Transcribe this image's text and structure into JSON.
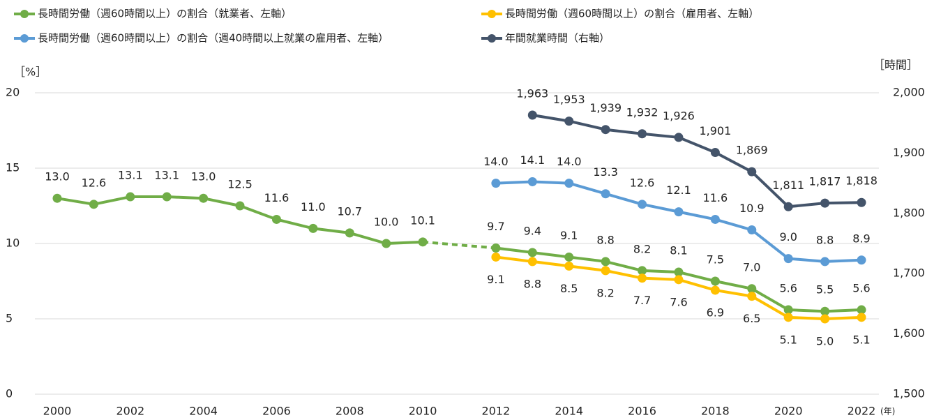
{
  "chart_data": {
    "type": "line",
    "x": [
      2000,
      2001,
      2002,
      2003,
      2004,
      2005,
      2006,
      2007,
      2008,
      2009,
      2010,
      2011,
      2012,
      2013,
      2014,
      2015,
      2016,
      2017,
      2018,
      2019,
      2020,
      2021,
      2022
    ],
    "xlim": [
      2000,
      2022
    ],
    "xticks": [
      2000,
      2002,
      2004,
      2006,
      2008,
      2010,
      2012,
      2014,
      2016,
      2018,
      2020,
      2022
    ],
    "x_unit": "(年)",
    "y_label": "［%］",
    "y2_label": "［時間］",
    "ylim": [
      0,
      20
    ],
    "yticks": [
      0,
      5,
      10,
      15,
      20
    ],
    "y2lim": [
      1500,
      2000
    ],
    "y2ticks": [
      {
        "value": 1500,
        "label": "1,500"
      },
      {
        "value": 1600,
        "label": "1,600"
      },
      {
        "value": 1700,
        "label": "1,700"
      },
      {
        "value": 1800,
        "label": "1,800"
      },
      {
        "value": 1900,
        "label": "1,900"
      },
      {
        "value": 2000,
        "label": "2,000"
      }
    ],
    "grid": true,
    "series": [
      {
        "name": "長時間労働（週60時間以上）の割合（就業者、左軸）",
        "color": "#70ad47",
        "gap_style": "dashed",
        "label_position": "above",
        "values": [
          13.0,
          12.6,
          13.1,
          13.1,
          13.0,
          12.5,
          11.6,
          11.0,
          10.7,
          10.0,
          10.1,
          null,
          9.7,
          9.4,
          9.1,
          8.8,
          8.2,
          8.1,
          7.5,
          7.0,
          5.6,
          5.5,
          5.6
        ],
        "value_labels": [
          "13.0",
          "12.6",
          "13.1",
          "13.1",
          "13.0",
          "12.5",
          "11.6",
          "11.0",
          "10.7",
          "10.0",
          "10.1",
          null,
          "9.7",
          "9.4",
          "9.1",
          "8.8",
          "8.2",
          "8.1",
          "7.5",
          "7.0",
          "5.6",
          "5.5",
          "5.6"
        ]
      },
      {
        "name": "長時間労働（週60時間以上）の割合（雇用者、左軸）",
        "color": "#ffc000",
        "label_position": "below",
        "values": [
          null,
          null,
          null,
          null,
          null,
          null,
          null,
          null,
          null,
          null,
          null,
          null,
          9.1,
          8.8,
          8.5,
          8.2,
          7.7,
          7.6,
          6.9,
          6.5,
          5.1,
          5.0,
          5.1
        ],
        "value_labels": [
          null,
          null,
          null,
          null,
          null,
          null,
          null,
          null,
          null,
          null,
          null,
          null,
          "9.1",
          "8.8",
          "8.5",
          "8.2",
          "7.7",
          "7.6",
          "6.9",
          "6.5",
          "5.1",
          "5.0",
          "5.1"
        ]
      },
      {
        "name": "長時間労働（週60時間以上）の割合（週40時間以上就業の雇用者、左軸）",
        "color": "#5b9bd5",
        "label_position": "above",
        "values": [
          null,
          null,
          null,
          null,
          null,
          null,
          null,
          null,
          null,
          null,
          null,
          null,
          14.0,
          14.1,
          14.0,
          13.3,
          12.6,
          12.1,
          11.6,
          10.9,
          9.0,
          8.8,
          8.9
        ],
        "value_labels": [
          null,
          null,
          null,
          null,
          null,
          null,
          null,
          null,
          null,
          null,
          null,
          null,
          "14.0",
          "14.1",
          "14.0",
          "13.3",
          "12.6",
          "12.1",
          "11.6",
          "10.9",
          "9.0",
          "8.8",
          "8.9"
        ]
      },
      {
        "name": "年間就業時間（右軸）",
        "color": "#44546a",
        "axis": "y2",
        "label_position": "above",
        "values": [
          null,
          null,
          null,
          null,
          null,
          null,
          null,
          null,
          null,
          null,
          null,
          null,
          null,
          1963,
          1953,
          1939,
          1932,
          1926,
          1901,
          1869,
          1811,
          1817,
          1818
        ],
        "value_labels": [
          null,
          null,
          null,
          null,
          null,
          null,
          null,
          null,
          null,
          null,
          null,
          null,
          null,
          "1,963",
          "1,953",
          "1,939",
          "1,932",
          "1,926",
          "1,901",
          "1,869",
          "1,811",
          "1,817",
          "1,818"
        ]
      }
    ]
  }
}
